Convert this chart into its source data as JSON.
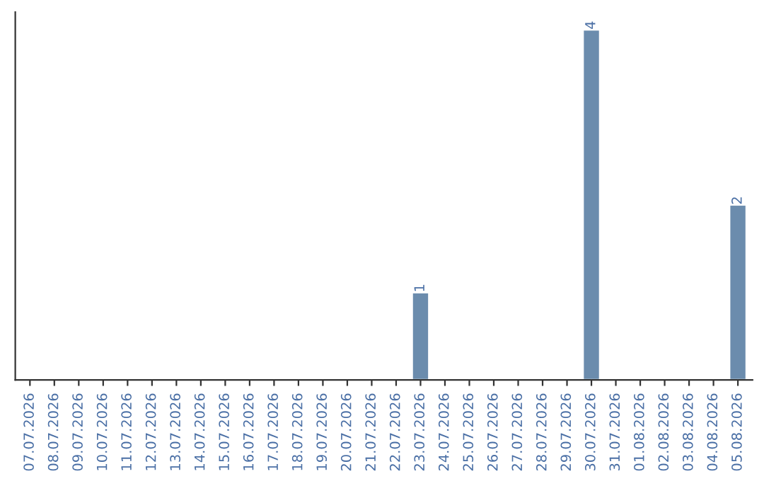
{
  "chart_data": {
    "type": "bar",
    "categories": [
      "07.07.2026",
      "08.07.2026",
      "09.07.2026",
      "10.07.2026",
      "11.07.2026",
      "12.07.2026",
      "13.07.2026",
      "14.07.2026",
      "15.07.2026",
      "16.07.2026",
      "17.07.2026",
      "18.07.2026",
      "19.07.2026",
      "20.07.2026",
      "21.07.2026",
      "22.07.2026",
      "23.07.2026",
      "24.07.2026",
      "25.07.2026",
      "26.07.2026",
      "27.07.2026",
      "28.07.2026",
      "29.07.2026",
      "30.07.2026",
      "31.07.2026",
      "01.08.2026",
      "02.08.2026",
      "03.08.2026",
      "04.08.2026",
      "05.08.2026"
    ],
    "values": [
      null,
      null,
      null,
      null,
      null,
      null,
      null,
      null,
      null,
      null,
      null,
      null,
      null,
      null,
      null,
      null,
      1,
      null,
      null,
      null,
      null,
      null,
      null,
      4,
      null,
      null,
      null,
      null,
      null,
      2
    ],
    "data_labels": true,
    "color": "#6b8cad",
    "ylim": [
      0,
      4.2
    ],
    "tick_labels": "x",
    "grid": false,
    "legend": false
  }
}
